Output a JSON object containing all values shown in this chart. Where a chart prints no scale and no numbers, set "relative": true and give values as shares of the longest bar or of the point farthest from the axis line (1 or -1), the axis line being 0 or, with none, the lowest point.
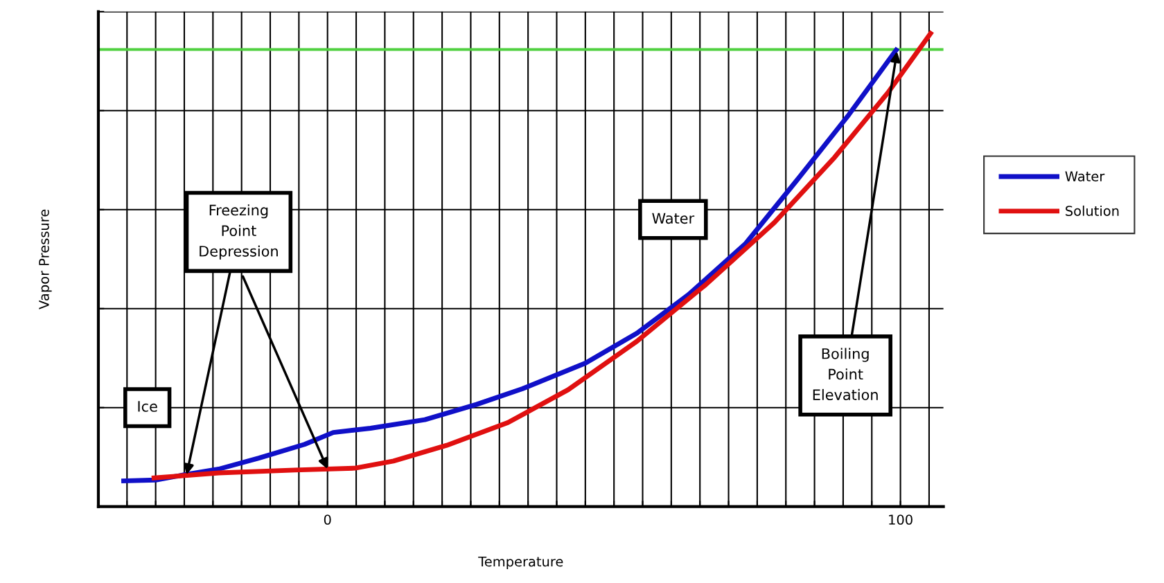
{
  "chart_data": {
    "type": "line",
    "relative": true,
    "xlabel": "Temperature",
    "ylabel": "Vapor Pressure",
    "xlim": [
      -40,
      107.5
    ],
    "xticks": [
      {
        "value": -35,
        "label": null
      },
      {
        "value": -30,
        "label": null
      },
      {
        "value": -25,
        "label": null
      },
      {
        "value": -20,
        "label": null
      },
      {
        "value": -15,
        "label": null
      },
      {
        "value": -10,
        "label": null
      },
      {
        "value": -5,
        "label": null
      },
      0,
      {
        "value": 5,
        "label": null
      },
      {
        "value": 10,
        "label": null
      },
      {
        "value": 15,
        "label": null
      },
      {
        "value": 20,
        "label": null
      },
      {
        "value": 25,
        "label": null
      },
      {
        "value": 30,
        "label": null
      },
      {
        "value": 35,
        "label": null
      },
      {
        "value": 40,
        "label": null
      },
      {
        "value": 45,
        "label": null
      },
      {
        "value": 50,
        "label": null
      },
      {
        "value": 55,
        "label": null
      },
      {
        "value": 60,
        "label": null
      },
      {
        "value": 65,
        "label": null
      },
      {
        "value": 70,
        "label": null
      },
      {
        "value": 75,
        "label": null
      },
      {
        "value": 80,
        "label": null
      },
      {
        "value": 85,
        "label": null
      },
      {
        "value": 90,
        "label": null
      },
      {
        "value": 95,
        "label": null
      },
      100,
      {
        "value": 105,
        "label": null
      }
    ],
    "grid": true,
    "legend": "right",
    "line_style": "solid",
    "series": [
      {
        "name": "Water",
        "color": "#1010c8",
        "x": [
          -36,
          -30,
          -25,
          -19,
          -12,
          -4,
          1,
          7.5,
          17,
          26,
          34,
          45,
          54,
          63,
          73,
          82,
          91,
          99.5
        ],
        "values": [
          0.054,
          0.056,
          0.067,
          0.079,
          0.102,
          0.131,
          0.156,
          0.165,
          0.183,
          0.215,
          0.248,
          0.302,
          0.365,
          0.446,
          0.554,
          0.688,
          0.825,
          0.965
        ]
      },
      {
        "name": "Solution",
        "color": "#e01010",
        "x": [
          -30.7,
          -19,
          -5.7,
          4.8,
          11.5,
          20.8,
          31.5,
          42,
          54,
          66,
          78,
          88.5,
          97.8,
          105.5
        ],
        "values": [
          0.06,
          0.071,
          0.077,
          0.081,
          0.096,
          0.129,
          0.177,
          0.246,
          0.348,
          0.467,
          0.598,
          0.735,
          0.871,
          1.0
        ]
      }
    ],
    "ref_lines": [
      {
        "axis": "y",
        "value": 0.962,
        "color": "#50d040"
      }
    ],
    "annotations": [
      "Ice",
      {
        "text": "Freezing\nPoint\nDepression",
        "x": -24.6,
        "y": 0.067
      },
      "Water",
      {
        "text": "Boiling\nPoint\nElevation",
        "x": 99.4,
        "y": 0.958
      }
    ]
  }
}
